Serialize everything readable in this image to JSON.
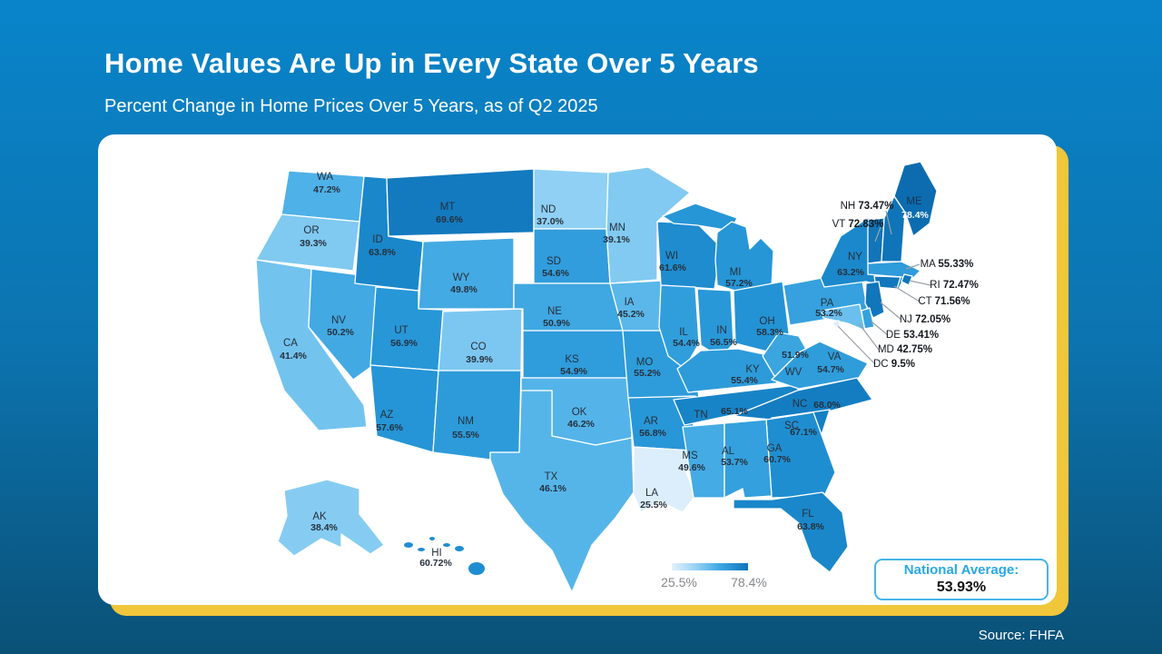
{
  "title": "Home Values Are Up in Every State Over 5 Years",
  "subtitle": "Percent Change in Home Prices Over 5 Years, as of Q2 2025",
  "source": "Source: FHFA",
  "national_average": {
    "label": "National Average:",
    "value": "53.93%"
  },
  "legend": {
    "min_label": "25.5%",
    "max_label": "78.4%"
  },
  "colors": {
    "background_top": "#0984CA",
    "background_bottom": "#0A5177",
    "card_shadow_gold": "#F0C63A",
    "accent_blue": "#29A8E4",
    "label_dark": "#26303C",
    "callout_line_gray": "#9AA0A6",
    "scale_stops": [
      [
        25.5,
        "#DCEEFB"
      ],
      [
        37,
        "#8FD0F4"
      ],
      [
        47,
        "#4FB2E8"
      ],
      [
        58,
        "#2394D6"
      ],
      [
        68,
        "#147DC2"
      ],
      [
        78.4,
        "#0D6CB0"
      ]
    ]
  },
  "chart_data": {
    "type": "choropleth",
    "title": "Home Values Are Up in Every State Over 5 Years",
    "subtitle": "Percent Change in Home Prices Over 5 Years, as of Q2 2025",
    "metric": "Percent change in home prices over 5 years, as of Q2 2025",
    "range": [
      25.5,
      78.4
    ],
    "national_average": 53.93,
    "source": "FHFA",
    "states": [
      {
        "abbr": "WA",
        "value": 47.2,
        "display": "47.2%"
      },
      {
        "abbr": "OR",
        "value": 39.3,
        "display": "39.3%"
      },
      {
        "abbr": "CA",
        "value": 41.4,
        "display": "41.4%"
      },
      {
        "abbr": "NV",
        "value": 50.2,
        "display": "50.2%"
      },
      {
        "abbr": "ID",
        "value": 63.8,
        "display": "63.8%"
      },
      {
        "abbr": "MT",
        "value": 69.6,
        "display": "69.6%"
      },
      {
        "abbr": "WY",
        "value": 49.8,
        "display": "49.8%"
      },
      {
        "abbr": "UT",
        "value": 56.9,
        "display": "56.9%"
      },
      {
        "abbr": "CO",
        "value": 39.9,
        "display": "39.9%"
      },
      {
        "abbr": "AZ",
        "value": 57.6,
        "display": "57.6%"
      },
      {
        "abbr": "NM",
        "value": 55.5,
        "display": "55.5%"
      },
      {
        "abbr": "ND",
        "value": 37.0,
        "display": "37.0%"
      },
      {
        "abbr": "SD",
        "value": 54.6,
        "display": "54.6%"
      },
      {
        "abbr": "NE",
        "value": 50.9,
        "display": "50.9%"
      },
      {
        "abbr": "KS",
        "value": 54.9,
        "display": "54.9%"
      },
      {
        "abbr": "OK",
        "value": 46.2,
        "display": "46.2%"
      },
      {
        "abbr": "TX",
        "value": 46.1,
        "display": "46.1%"
      },
      {
        "abbr": "MN",
        "value": 39.1,
        "display": "39.1%"
      },
      {
        "abbr": "IA",
        "value": 45.2,
        "display": "45.2%"
      },
      {
        "abbr": "MO",
        "value": 55.2,
        "display": "55.2%"
      },
      {
        "abbr": "AR",
        "value": 56.8,
        "display": "56.8%"
      },
      {
        "abbr": "LA",
        "value": 25.5,
        "display": "25.5%"
      },
      {
        "abbr": "WI",
        "value": 61.6,
        "display": "61.6%"
      },
      {
        "abbr": "IL",
        "value": 54.4,
        "display": "54.4%"
      },
      {
        "abbr": "MS",
        "value": 49.6,
        "display": "49.6%"
      },
      {
        "abbr": "MI",
        "value": 57.2,
        "display": "57.2%"
      },
      {
        "abbr": "IN",
        "value": 56.5,
        "display": "56.5%"
      },
      {
        "abbr": "KY",
        "value": 55.4,
        "display": "55.4%"
      },
      {
        "abbr": "TN",
        "value": 65.1,
        "display": "65.1%"
      },
      {
        "abbr": "AL",
        "value": 53.7,
        "display": "53.7%"
      },
      {
        "abbr": "OH",
        "value": 58.3,
        "display": "58.3%"
      },
      {
        "abbr": "GA",
        "value": 60.7,
        "display": "60.7%"
      },
      {
        "abbr": "FL",
        "value": 63.8,
        "display": "63.8%"
      },
      {
        "abbr": "SC",
        "value": 67.1,
        "display": "67.1%"
      },
      {
        "abbr": "NC",
        "value": 68.0,
        "display": "68.0%"
      },
      {
        "abbr": "WV",
        "value": 51.9,
        "display": "51.9%"
      },
      {
        "abbr": "VA",
        "value": 54.7,
        "display": "54.7%"
      },
      {
        "abbr": "PA",
        "value": 53.2,
        "display": "53.2%"
      },
      {
        "abbr": "NY",
        "value": 63.2,
        "display": "63.2%"
      },
      {
        "abbr": "ME",
        "value": 78.4,
        "display": "78.4%"
      },
      {
        "abbr": "NH",
        "value": 73.47,
        "display": "73.47%"
      },
      {
        "abbr": "VT",
        "value": 72.83,
        "display": "72.83%"
      },
      {
        "abbr": "MA",
        "value": 55.33,
        "display": "55.33%"
      },
      {
        "abbr": "RI",
        "value": 72.47,
        "display": "72.47%"
      },
      {
        "abbr": "CT",
        "value": 71.56,
        "display": "71.56%"
      },
      {
        "abbr": "NJ",
        "value": 72.05,
        "display": "72.05%"
      },
      {
        "abbr": "DE",
        "value": 53.41,
        "display": "53.41%"
      },
      {
        "abbr": "MD",
        "value": 42.75,
        "display": "42.75%"
      },
      {
        "abbr": "DC",
        "value": 9.5,
        "display": "9.5%"
      },
      {
        "abbr": "AK",
        "value": 38.4,
        "display": "38.4%"
      },
      {
        "abbr": "HI",
        "value": 60.72,
        "display": "60.72%"
      }
    ]
  }
}
